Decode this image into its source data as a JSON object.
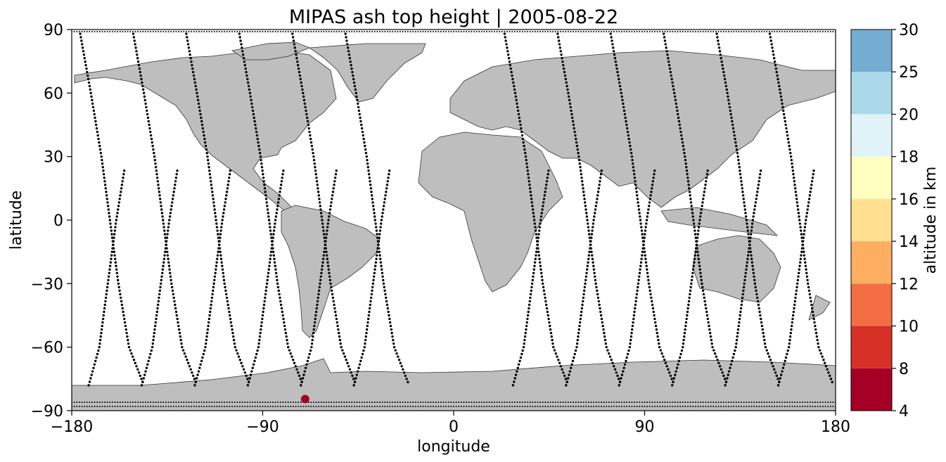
{
  "chart_data": {
    "type": "scatter",
    "title": "MIPAS ash top height | 2005-08-22",
    "xlabel": "longitude",
    "ylabel": "latitude",
    "xlim": [
      -180,
      180
    ],
    "ylim": [
      -90,
      90
    ],
    "xticks": [
      -180,
      -90,
      0,
      90,
      180
    ],
    "xtick_labels": [
      "−180",
      "−90",
      "0",
      "90",
      "180"
    ],
    "yticks": [
      90,
      60,
      30,
      0,
      -30,
      -60,
      -90
    ],
    "ytick_labels": [
      "90",
      "60",
      "30",
      "0",
      "−30",
      "−60",
      "−90"
    ],
    "grid": false,
    "basemap": "world coastlines, land filled grey",
    "colors": {
      "land": "#bebebe",
      "coast": "#333333",
      "track": "#000000",
      "ash": "#a50026"
    },
    "colorbar": {
      "label": "altitude in km",
      "tick_labels": [
        "4",
        "8",
        "10",
        "12",
        "14",
        "16",
        "18",
        "20",
        "25",
        "30"
      ],
      "boundaries": [
        4,
        8,
        10,
        12,
        14,
        16,
        18,
        20,
        25,
        30
      ],
      "colors": [
        "#a50026",
        "#d73027",
        "#f46d43",
        "#fdae61",
        "#fee090",
        "#ffffbf",
        "#e0f3f8",
        "#abd9e9",
        "#74add1",
        "#4575b4",
        "#313695"
      ]
    },
    "series": [
      {
        "kind": "satellite ground tracks (no ash detected)",
        "orbits": [
          {
            "desc": [
              [
                -176,
                88
              ],
              [
                -171,
                60
              ],
              [
                -166,
                30
              ],
              [
                -162,
                0
              ],
              [
                -158,
                -30
              ],
              [
                -153,
                -60
              ],
              [
                -146,
                -78
              ]
            ],
            "asc": [
              [
                -172,
                -78
              ],
              [
                -167,
                -60
              ],
              [
                -163,
                -30
              ],
              [
                -159,
                0
              ],
              [
                -155,
                25
              ]
            ]
          },
          {
            "desc": [
              [
                -151,
                88
              ],
              [
                -146,
                60
              ],
              [
                -141,
                30
              ],
              [
                -137,
                0
              ],
              [
                -133,
                -30
              ],
              [
                -128,
                -60
              ],
              [
                -121,
                -78
              ]
            ],
            "asc": [
              [
                -147,
                -78
              ],
              [
                -142,
                -60
              ],
              [
                -138,
                -30
              ],
              [
                -134,
                0
              ],
              [
                -130,
                25
              ]
            ]
          },
          {
            "desc": [
              [
                -126,
                88
              ],
              [
                -121,
                60
              ],
              [
                -116,
                30
              ],
              [
                -112,
                0
              ],
              [
                -108,
                -30
              ],
              [
                -103,
                -60
              ],
              [
                -96,
                -78
              ]
            ],
            "asc": [
              [
                -122,
                -78
              ],
              [
                -117,
                -60
              ],
              [
                -113,
                -30
              ],
              [
                -109,
                0
              ],
              [
                -105,
                25
              ]
            ]
          },
          {
            "desc": [
              [
                -101,
                88
              ],
              [
                -96,
                60
              ],
              [
                -91,
                30
              ],
              [
                -87,
                0
              ],
              [
                -83,
                -30
              ],
              [
                -78,
                -60
              ],
              [
                -71,
                -78
              ]
            ],
            "asc": [
              [
                -97,
                -78
              ],
              [
                -92,
                -60
              ],
              [
                -88,
                -30
              ],
              [
                -84,
                0
              ],
              [
                -80,
                25
              ]
            ]
          },
          {
            "desc": [
              [
                -76,
                88
              ],
              [
                -71,
                60
              ],
              [
                -66,
                30
              ],
              [
                -62,
                0
              ],
              [
                -58,
                -30
              ],
              [
                -53,
                -60
              ],
              [
                -46,
                -78
              ]
            ],
            "asc": [
              [
                -72,
                -78
              ],
              [
                -67,
                -60
              ],
              [
                -63,
                -30
              ],
              [
                -59,
                0
              ],
              [
                -55,
                25
              ]
            ]
          },
          {
            "desc": [
              [
                -51,
                88
              ],
              [
                -46,
                60
              ],
              [
                -41,
                30
              ],
              [
                -37,
                0
              ],
              [
                -33,
                -30
              ],
              [
                -28,
                -60
              ],
              [
                -21,
                -78
              ]
            ],
            "asc": [
              [
                -47,
                -78
              ],
              [
                -42,
                -60
              ],
              [
                -38,
                -30
              ],
              [
                -34,
                0
              ],
              [
                -30,
                25
              ]
            ]
          },
          {
            "desc": [
              [
                24,
                88
              ],
              [
                29,
                60
              ],
              [
                34,
                30
              ],
              [
                38,
                0
              ],
              [
                42,
                -30
              ],
              [
                47,
                -60
              ],
              [
                54,
                -78
              ]
            ],
            "asc": [
              [
                28,
                -78
              ],
              [
                33,
                -60
              ],
              [
                37,
                -30
              ],
              [
                41,
                0
              ],
              [
                45,
                25
              ]
            ]
          },
          {
            "desc": [
              [
                49,
                88
              ],
              [
                54,
                60
              ],
              [
                59,
                30
              ],
              [
                63,
                0
              ],
              [
                67,
                -30
              ],
              [
                72,
                -60
              ],
              [
                79,
                -78
              ]
            ],
            "asc": [
              [
                53,
                -78
              ],
              [
                58,
                -60
              ],
              [
                62,
                -30
              ],
              [
                66,
                0
              ],
              [
                70,
                25
              ]
            ]
          },
          {
            "desc": [
              [
                74,
                88
              ],
              [
                79,
                60
              ],
              [
                84,
                30
              ],
              [
                88,
                0
              ],
              [
                92,
                -30
              ],
              [
                97,
                -60
              ],
              [
                104,
                -78
              ]
            ],
            "asc": [
              [
                78,
                -78
              ],
              [
                83,
                -60
              ],
              [
                87,
                -30
              ],
              [
                91,
                0
              ],
              [
                95,
                25
              ]
            ]
          },
          {
            "desc": [
              [
                99,
                88
              ],
              [
                104,
                60
              ],
              [
                109,
                30
              ],
              [
                113,
                0
              ],
              [
                117,
                -30
              ],
              [
                122,
                -60
              ],
              [
                129,
                -78
              ]
            ],
            "asc": [
              [
                103,
                -78
              ],
              [
                108,
                -60
              ],
              [
                112,
                -30
              ],
              [
                116,
                0
              ],
              [
                120,
                25
              ]
            ]
          },
          {
            "desc": [
              [
                124,
                88
              ],
              [
                129,
                60
              ],
              [
                134,
                30
              ],
              [
                138,
                0
              ],
              [
                142,
                -30
              ],
              [
                147,
                -60
              ],
              [
                154,
                -78
              ]
            ],
            "asc": [
              [
                128,
                -78
              ],
              [
                133,
                -60
              ],
              [
                137,
                -30
              ],
              [
                141,
                0
              ],
              [
                145,
                25
              ]
            ]
          },
          {
            "desc": [
              [
                149,
                88
              ],
              [
                154,
                60
              ],
              [
                159,
                30
              ],
              [
                163,
                0
              ],
              [
                167,
                -30
              ],
              [
                172,
                -60
              ],
              [
                179,
                -78
              ]
            ],
            "asc": [
              [
                153,
                -78
              ],
              [
                158,
                -60
              ],
              [
                162,
                -30
              ],
              [
                166,
                0
              ],
              [
                170,
                25
              ]
            ]
          }
        ],
        "polar_bands": [
          [
            -180,
            180,
            89
          ],
          [
            -180,
            180,
            -86
          ],
          [
            -180,
            180,
            -88
          ]
        ]
      },
      {
        "kind": "ash detection",
        "points": [
          {
            "lon": -70,
            "lat": -84.5,
            "altitude_km": 6
          }
        ]
      }
    ]
  }
}
